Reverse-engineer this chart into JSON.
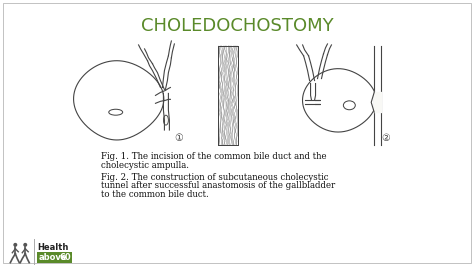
{
  "title": "CHOLEDOCHOSTOMY",
  "title_color": "#5a8a2a",
  "title_fontsize": 13,
  "background_color": "#ffffff",
  "panel_bg": "#f8f8f5",
  "fig1_line1": "Fig. 1. The incision of the common bile duct and the",
  "fig1_line2": "cholecystic ampulla.",
  "fig2_line1": "Fig. 2. The construction of subcutaneous cholecystic",
  "fig2_line2": "tunnel after successful anastomosis of the gallbladder",
  "fig2_line3": "to the common bile duct.",
  "caption_fontsize": 6.2,
  "caption_color": "#111111",
  "draw_color": "#444444",
  "draw_lw": 0.8,
  "border_color": "#aaaaaa"
}
